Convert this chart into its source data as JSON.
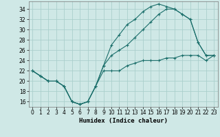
{
  "xlabel": "Humidex (Indice chaleur)",
  "xlim": [
    -0.5,
    23.5
  ],
  "ylim": [
    15,
    35.5
  ],
  "yticks": [
    16,
    18,
    20,
    22,
    24,
    26,
    28,
    30,
    32,
    34
  ],
  "xticks": [
    0,
    1,
    2,
    3,
    4,
    5,
    6,
    7,
    8,
    9,
    10,
    11,
    12,
    13,
    14,
    15,
    16,
    17,
    18,
    19,
    20,
    21,
    22,
    23
  ],
  "bg_color": "#cfe8e6",
  "grid_color": "#aacfcc",
  "line_color": "#1a6e6a",
  "line1_y": [
    22,
    21,
    20,
    20,
    19,
    16,
    15.5,
    16,
    19,
    23,
    27,
    29,
    31,
    32,
    33.5,
    34.5,
    35,
    34.5,
    34,
    33,
    32,
    27.5,
    25,
    25
  ],
  "line2_y": [
    22,
    21,
    20,
    20,
    19,
    16,
    15.5,
    16,
    19,
    23,
    25,
    26,
    27,
    28.5,
    30,
    31.5,
    33,
    34,
    34,
    33,
    32,
    27.5,
    25,
    25
  ],
  "line3_y": [
    22,
    21,
    20,
    20,
    19,
    16,
    15.5,
    16,
    19,
    22,
    22,
    22,
    23,
    23.5,
    24,
    24,
    24,
    24.5,
    24.5,
    25,
    25,
    25,
    24,
    25
  ],
  "tick_fontsize": 5.5,
  "label_fontsize": 6.5
}
